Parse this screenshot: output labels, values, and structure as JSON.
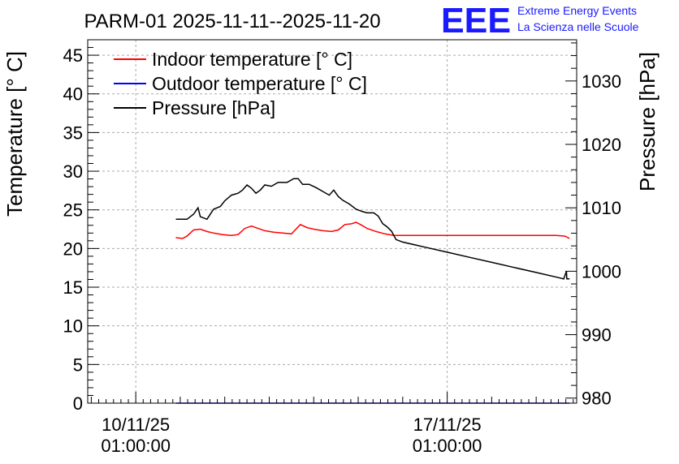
{
  "chart_data": {
    "type": "line",
    "title": "PARM-01 2025-11-11--2025-11-20",
    "ylabel": "Temperature [° C]",
    "y2label": "Pressure [hPa]",
    "ylim": [
      0,
      47
    ],
    "y2lim": [
      979.2,
      1036.5
    ],
    "y_ticks": [
      0,
      5,
      10,
      15,
      20,
      25,
      30,
      35,
      40,
      45
    ],
    "y2_ticks": [
      980,
      990,
      1000,
      1010,
      1020,
      1030
    ],
    "x_range_days": [
      -1.08,
      9.91
    ],
    "x_ticks": [
      {
        "day": 0,
        "date": "10/11/25",
        "time": "01:00:00"
      },
      {
        "day": 7,
        "date": "17/11/25",
        "time": "01:00:00"
      }
    ],
    "grid": true,
    "legend": [
      {
        "label": "Indoor temperature [° C]",
        "color": "#ff0000"
      },
      {
        "label": "Outdoor temperature [° C]",
        "color": "#0000ff"
      },
      {
        "label": "Pressure [hPa]",
        "color": "#000000"
      }
    ],
    "series": [
      {
        "name": "Indoor temperature [° C]",
        "axis": "left",
        "color": "#ff0000",
        "points": [
          [
            0.9,
            21.4
          ],
          [
            1.05,
            21.3
          ],
          [
            1.15,
            21.6
          ],
          [
            1.3,
            22.4
          ],
          [
            1.45,
            22.5
          ],
          [
            1.6,
            22.2
          ],
          [
            1.75,
            22.0
          ],
          [
            1.95,
            21.8
          ],
          [
            2.15,
            21.7
          ],
          [
            2.3,
            21.8
          ],
          [
            2.45,
            22.6
          ],
          [
            2.6,
            22.9
          ],
          [
            2.75,
            22.6
          ],
          [
            2.9,
            22.3
          ],
          [
            3.1,
            22.1
          ],
          [
            3.3,
            22.0
          ],
          [
            3.5,
            21.9
          ],
          [
            3.6,
            22.5
          ],
          [
            3.7,
            23.1
          ],
          [
            3.85,
            22.7
          ],
          [
            4.0,
            22.5
          ],
          [
            4.2,
            22.3
          ],
          [
            4.4,
            22.2
          ],
          [
            4.55,
            22.4
          ],
          [
            4.7,
            23.1
          ],
          [
            4.85,
            23.2
          ],
          [
            4.95,
            23.4
          ],
          [
            5.05,
            23.1
          ],
          [
            5.2,
            22.6
          ],
          [
            5.4,
            22.2
          ],
          [
            5.6,
            21.9
          ],
          [
            5.8,
            21.7
          ],
          [
            6.0,
            21.7
          ],
          [
            6.5,
            21.7
          ],
          [
            7.0,
            21.7
          ],
          [
            7.5,
            21.7
          ],
          [
            8.0,
            21.7
          ],
          [
            8.5,
            21.7
          ],
          [
            9.0,
            21.7
          ],
          [
            9.45,
            21.7
          ],
          [
            9.65,
            21.6
          ],
          [
            9.75,
            21.3
          ]
        ]
      },
      {
        "name": "Outdoor temperature [° C]",
        "axis": "left",
        "color": "#0000ff",
        "points": [
          [
            0.9,
            0.0
          ],
          [
            9.75,
            0.0
          ]
        ]
      },
      {
        "name": "Pressure [hPa]",
        "axis": "right",
        "color": "#000000",
        "points": [
          [
            0.9,
            1008.2
          ],
          [
            1.15,
            1008.2
          ],
          [
            1.3,
            1009.0
          ],
          [
            1.4,
            1010.0
          ],
          [
            1.45,
            1008.6
          ],
          [
            1.6,
            1008.2
          ],
          [
            1.75,
            1009.8
          ],
          [
            1.9,
            1010.2
          ],
          [
            2.0,
            1011.1
          ],
          [
            2.15,
            1012.0
          ],
          [
            2.3,
            1012.3
          ],
          [
            2.4,
            1012.8
          ],
          [
            2.5,
            1013.6
          ],
          [
            2.6,
            1013.1
          ],
          [
            2.7,
            1012.3
          ],
          [
            2.8,
            1012.8
          ],
          [
            2.9,
            1013.6
          ],
          [
            3.05,
            1013.4
          ],
          [
            3.2,
            1014.0
          ],
          [
            3.4,
            1014.0
          ],
          [
            3.55,
            1014.6
          ],
          [
            3.65,
            1014.6
          ],
          [
            3.75,
            1013.7
          ],
          [
            3.9,
            1013.7
          ],
          [
            4.05,
            1013.2
          ],
          [
            4.2,
            1012.6
          ],
          [
            4.35,
            1012.0
          ],
          [
            4.45,
            1012.8
          ],
          [
            4.55,
            1011.8
          ],
          [
            4.65,
            1011.2
          ],
          [
            4.8,
            1010.6
          ],
          [
            4.95,
            1009.8
          ],
          [
            5.1,
            1009.4
          ],
          [
            5.2,
            1009.2
          ],
          [
            5.35,
            1009.2
          ],
          [
            5.45,
            1008.7
          ],
          [
            5.55,
            1007.5
          ],
          [
            5.65,
            1007.0
          ],
          [
            5.75,
            1006.3
          ],
          [
            5.85,
            1005.0
          ],
          [
            6.0,
            1004.6
          ],
          [
            6.5,
            1003.8
          ],
          [
            7.0,
            1003.0
          ],
          [
            7.5,
            1002.2
          ],
          [
            8.0,
            1001.4
          ],
          [
            8.5,
            1000.6
          ],
          [
            9.0,
            999.8
          ],
          [
            9.5,
            999.0
          ],
          [
            9.62,
            998.8
          ],
          [
            9.68,
            1000.0
          ],
          [
            9.69,
            998.8
          ],
          [
            9.75,
            998.8
          ]
        ]
      }
    ]
  },
  "logo": {
    "text": "EEE",
    "line1": "Extreme Energy Events",
    "line2": "La Scienza nelle Scuole",
    "color": "#1a1aff"
  }
}
